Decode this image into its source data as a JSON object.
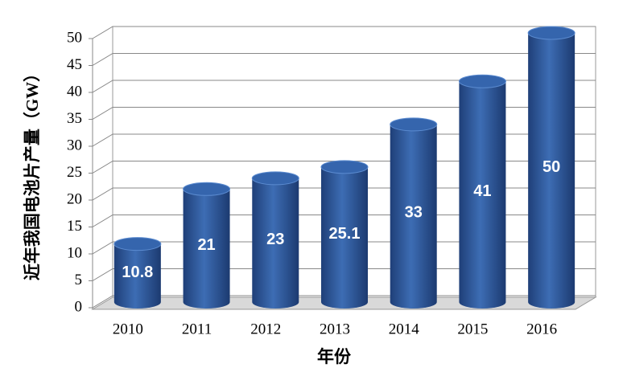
{
  "chart_data": {
    "type": "bar",
    "categories": [
      "2010",
      "2011",
      "2012",
      "2013",
      "2014",
      "2015",
      "2016"
    ],
    "values": [
      10.8,
      21,
      23,
      25.1,
      33,
      41,
      50
    ],
    "color": "#3d6db4",
    "ylim": [
      0,
      50
    ],
    "yticks": [
      0,
      5,
      10,
      15,
      20,
      25,
      30,
      35,
      40,
      45,
      50
    ],
    "grid": true,
    "y_label": "近年我国电池片产量（GW）",
    "x_label": "年份"
  }
}
